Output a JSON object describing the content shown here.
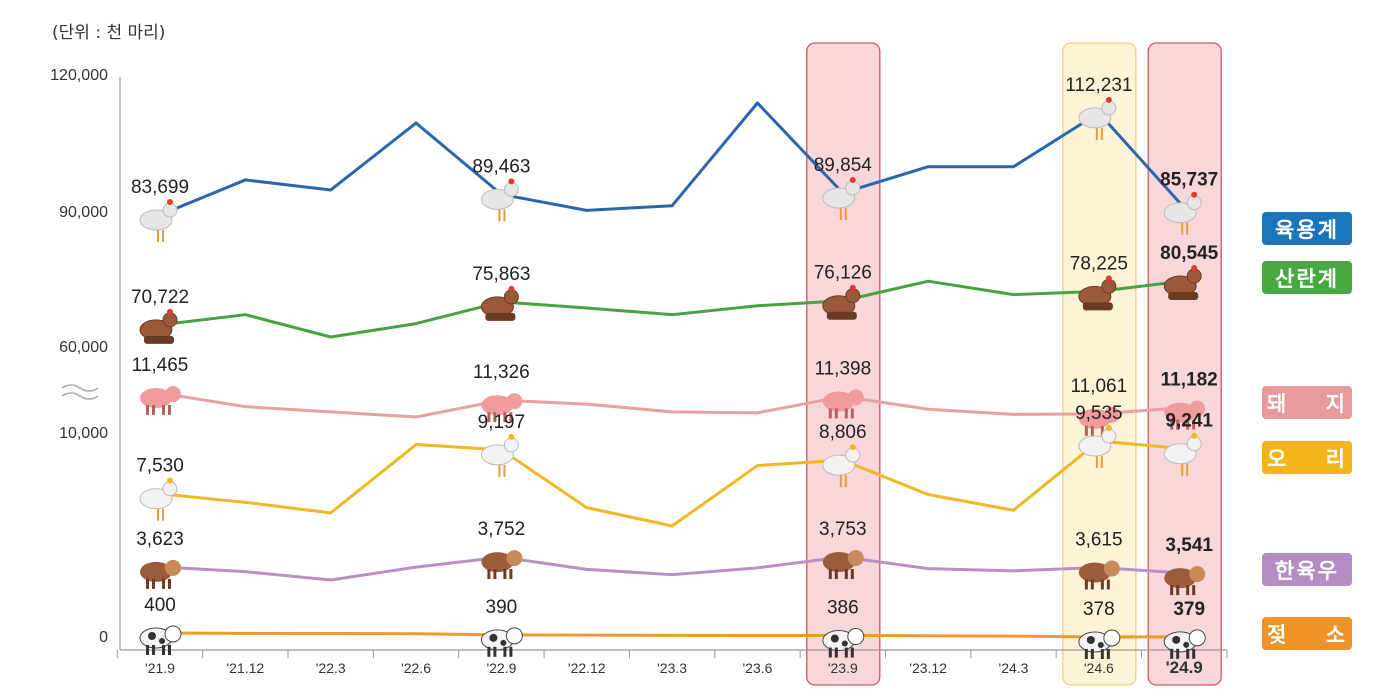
{
  "chart_data": {
    "type": "line",
    "unit_label": "(단위 : 천 마리)",
    "y_ticks": [
      "120,000",
      "90,000",
      "60,000",
      "10,000",
      "0"
    ],
    "y_axis_break": true,
    "grid": false,
    "legend_placement": "right",
    "categories": [
      "'21.9",
      "'21.12",
      "'22.3",
      "'22.6",
      "'22.9",
      "'22.12",
      "'23.3",
      "'23.6",
      "'23.9",
      "'23.12",
      "'24.3",
      "'24.6",
      "'24.9"
    ],
    "highlighted_categories": [
      {
        "category": "'23.9",
        "color": "#f8d7da"
      },
      {
        "category": "'24.6",
        "color": "#fdf3d6"
      },
      {
        "category": "'24.9",
        "color": "#f8d7da"
      }
    ],
    "labeled_indices": [
      0,
      4,
      8,
      11,
      12
    ],
    "series": [
      {
        "name": "육용계",
        "icon": "broiler-chicken-icon",
        "color": "#2a66ad",
        "legend_color": "#1a75bb",
        "values": [
          83699,
          93500,
          90700,
          109400,
          89463,
          85000,
          86300,
          115000,
          89854,
          97200,
          97200,
          112231,
          85737
        ],
        "labels": [
          "83,699",
          "89,463",
          "89,854",
          "112,231",
          "85,737"
        ]
      },
      {
        "name": "산란계",
        "icon": "laying-hen-icon",
        "color": "#47a33f",
        "legend_color": "#4aa843",
        "values": [
          70722,
          73000,
          68000,
          71000,
          75863,
          74500,
          73000,
          75000,
          76126,
          80500,
          77500,
          78225,
          80545
        ],
        "labels": [
          "70,722",
          "75,863",
          "76,126",
          "78,225",
          "80,545"
        ]
      },
      {
        "name": "돼    지",
        "icon": "pig-icon",
        "color": "#e8a0a0",
        "legend_color": "#e8999a",
        "values": [
          11465,
          11200,
          11100,
          11000,
          11326,
          11250,
          11100,
          11080,
          11398,
          11150,
          11050,
          11061,
          11182
        ],
        "labels": [
          "11,465",
          "11,326",
          "11,398",
          "11,061",
          "11,182"
        ]
      },
      {
        "name": "오    리",
        "icon": "duck-icon",
        "color": "#f2b824",
        "legend_color": "#f2b61c",
        "values": [
          7530,
          7200,
          6800,
          9400,
          9197,
          7000,
          6300,
          8600,
          8806,
          7500,
          6900,
          9535,
          9241
        ],
        "labels": [
          "7,530",
          "9,197",
          "8,806",
          "9,535",
          "9,241"
        ]
      },
      {
        "name": "한육우",
        "icon": "cow-icon",
        "color": "#b88fc6",
        "legend_color": "#b58dc4",
        "values": [
          3623,
          3560,
          3450,
          3620,
          3752,
          3590,
          3520,
          3610,
          3753,
          3600,
          3570,
          3615,
          3541
        ],
        "labels": [
          "3,623",
          "3,752",
          "3,753",
          "3,615",
          "3,541"
        ]
      },
      {
        "name": "젖    소",
        "icon": "dairy-cow-icon",
        "color": "#ec9a2b",
        "legend_color": "#ee922a",
        "values": [
          400,
          398,
          397,
          396,
          390,
          388,
          387,
          386,
          386,
          385,
          383,
          378,
          379
        ],
        "labels": [
          "400",
          "390",
          "386",
          "378",
          "379"
        ]
      }
    ]
  }
}
